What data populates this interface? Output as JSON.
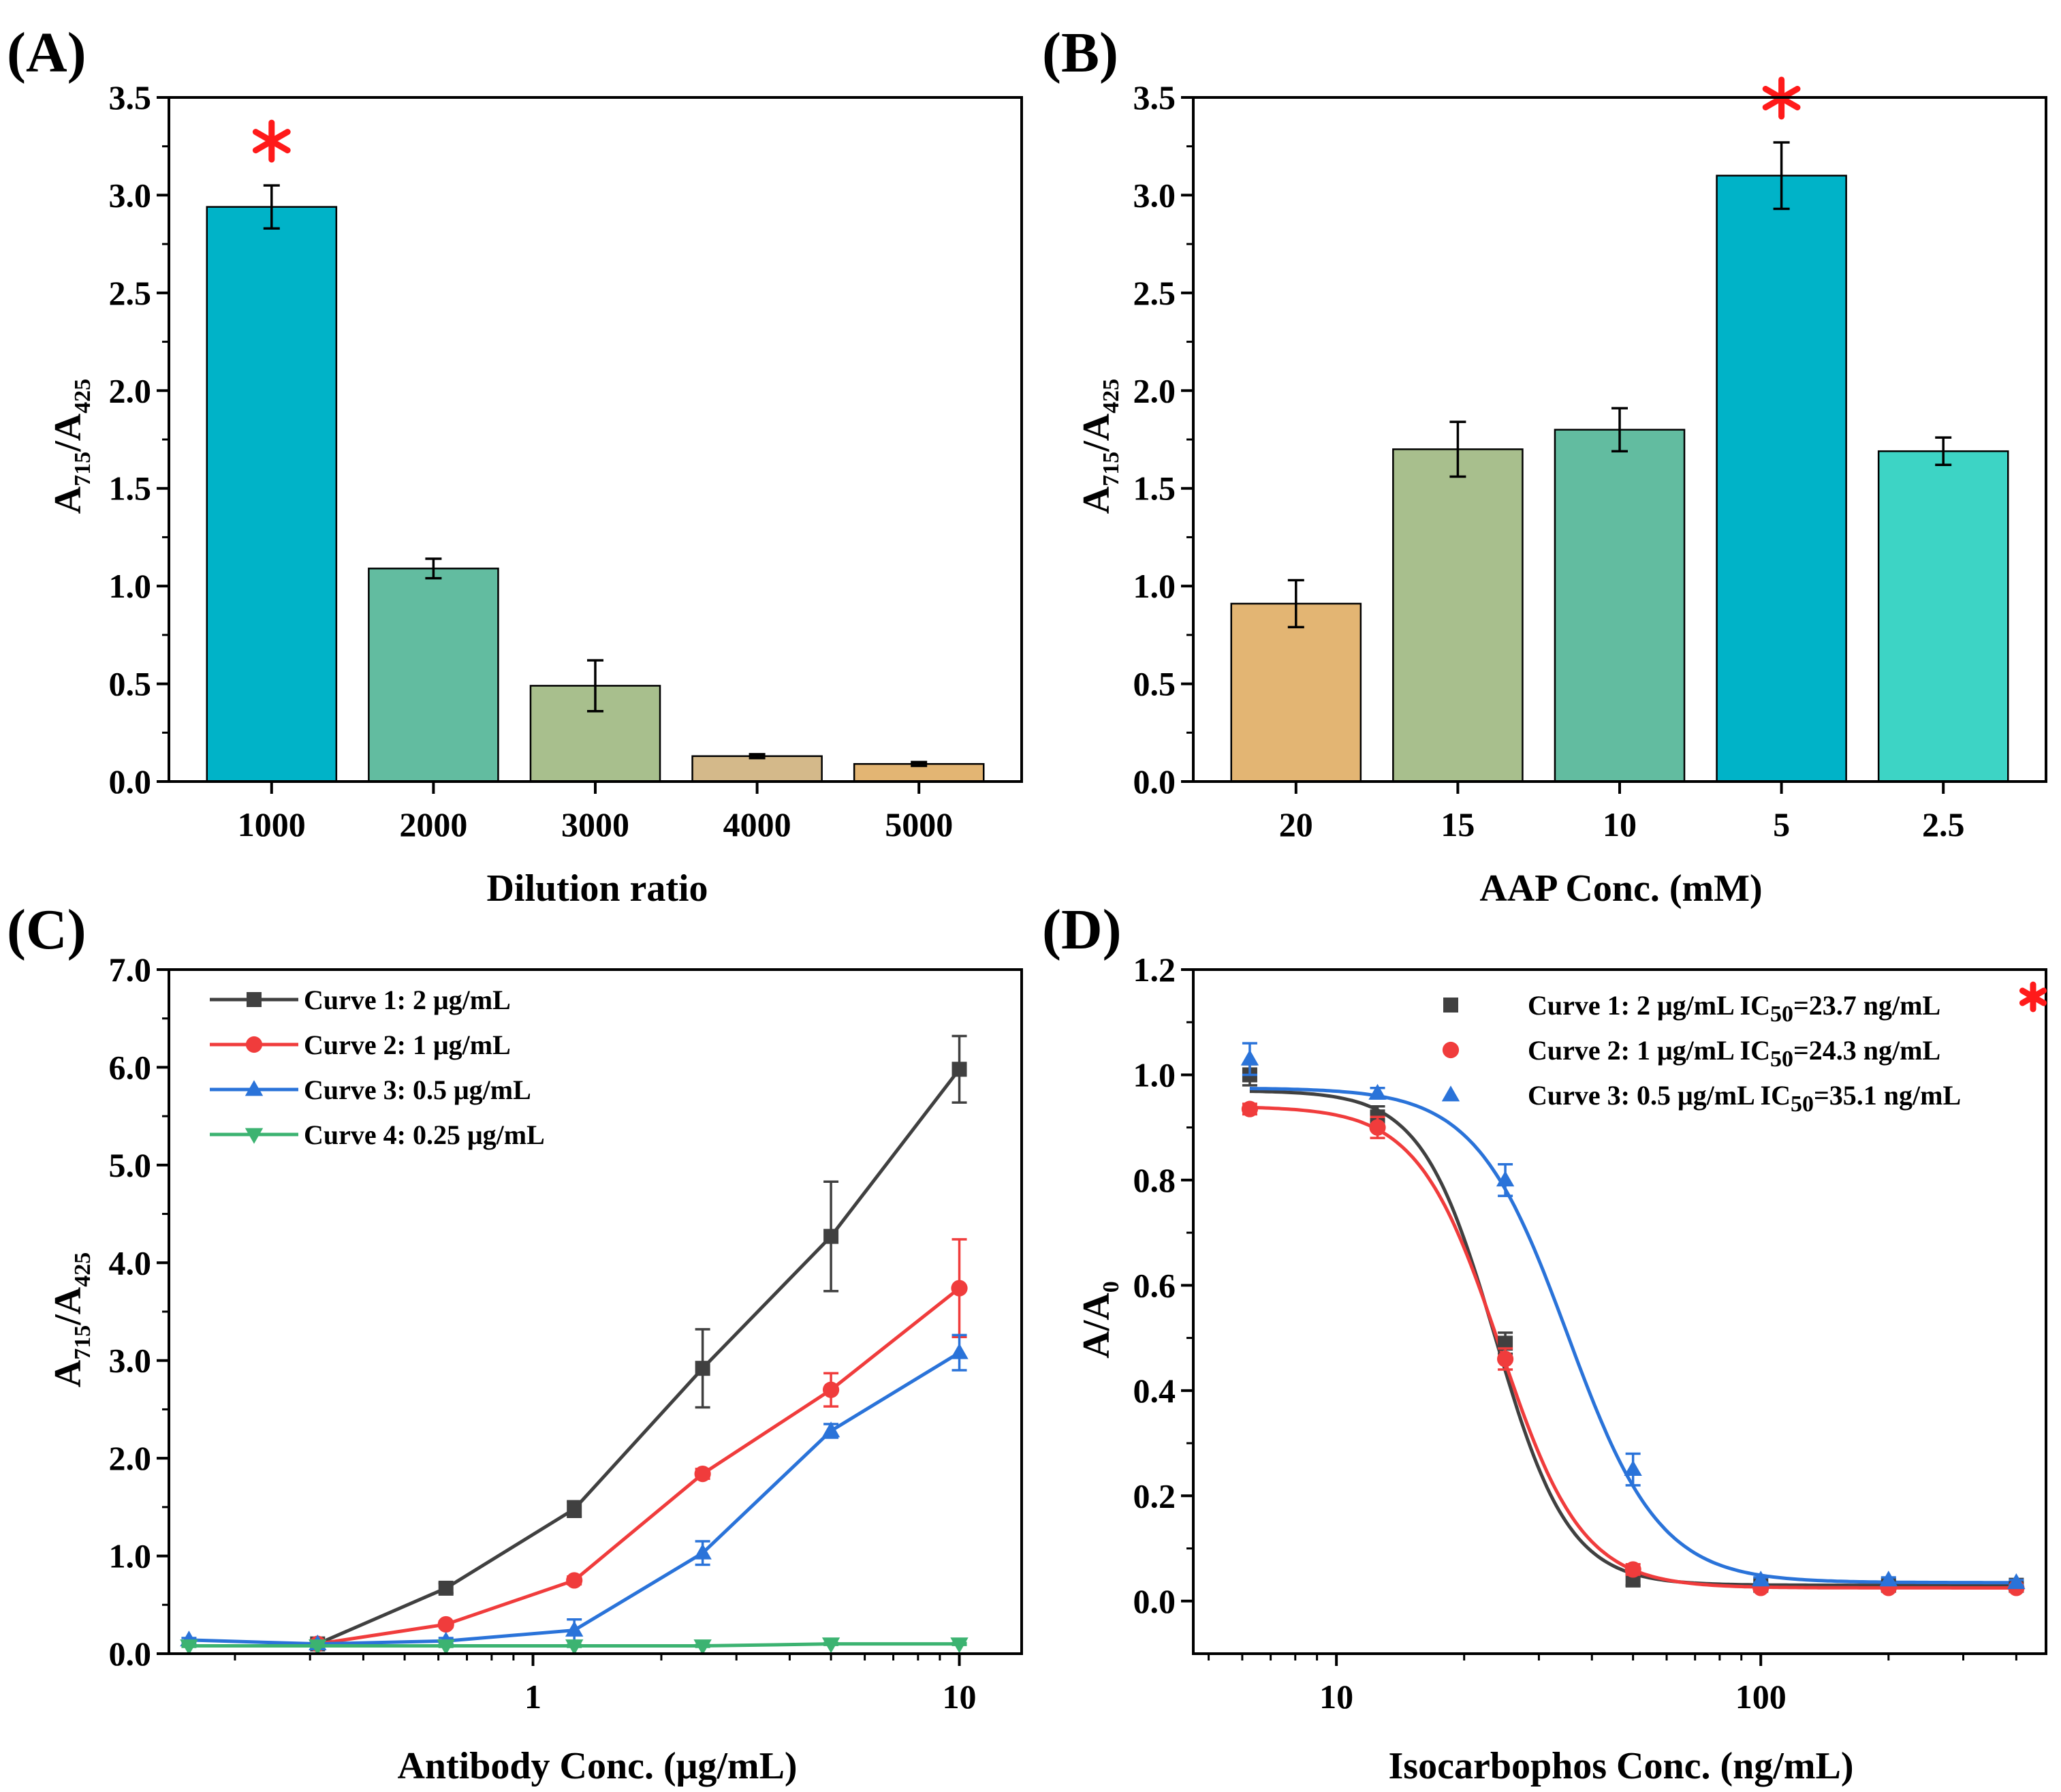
{
  "colors": {
    "bar_teal": "#00b3c8",
    "bar_green": "#62bca0",
    "bar_olive": "#a8bf8d",
    "bar_tan": "#d4b98a",
    "bar_orange": "#e3b573",
    "bar_turquoise": "#3dd4c5",
    "curve1": "#404040",
    "curve2": "#f03c3c",
    "curve3": "#2a73d9",
    "curve4": "#3cb371",
    "star": "#ff1a1a"
  },
  "chart_data": [
    {
      "id": "A",
      "panel_label": "(A)",
      "type": "bar",
      "categories": [
        "1000",
        "2000",
        "3000",
        "4000",
        "5000"
      ],
      "values": [
        2.94,
        1.09,
        0.49,
        0.13,
        0.09
      ],
      "errors": [
        0.11,
        0.05,
        0.13,
        0.01,
        0.01
      ],
      "bar_colors": [
        "bar_teal",
        "bar_green",
        "bar_olive",
        "bar_tan",
        "bar_orange"
      ],
      "highlight_index": 0,
      "highlight_mark": "*",
      "xlabel": "Dilution ratio",
      "ylabel": {
        "main": "A",
        "sub1": "715",
        "mid": "/A",
        "sub2": "425"
      },
      "ylim": [
        0,
        3.5
      ],
      "yticks": [
        "0.0",
        "0.5",
        "1.0",
        "1.5",
        "2.0",
        "2.5",
        "3.0",
        "3.5"
      ]
    },
    {
      "id": "B",
      "panel_label": "(B)",
      "type": "bar",
      "categories": [
        "20",
        "15",
        "10",
        "5",
        "2.5"
      ],
      "values": [
        0.91,
        1.7,
        1.8,
        3.1,
        1.69
      ],
      "errors": [
        0.12,
        0.14,
        0.11,
        0.17,
        0.07
      ],
      "bar_colors": [
        "bar_orange",
        "bar_olive",
        "bar_green",
        "bar_teal",
        "bar_turquoise"
      ],
      "highlight_index": 3,
      "highlight_mark": "*",
      "xlabel": "AAP Conc. (mM)",
      "ylabel": {
        "main": "A",
        "sub1": "715",
        "mid": "/A",
        "sub2": "425"
      },
      "ylim": [
        0,
        3.5
      ],
      "yticks": [
        "0.0",
        "0.5",
        "1.0",
        "1.5",
        "2.0",
        "2.5",
        "3.0",
        "3.5"
      ]
    },
    {
      "id": "C",
      "panel_label": "(C)",
      "type": "line",
      "x_scale": "log",
      "xlim": [
        0.14,
        14
      ],
      "xticks": [
        {
          "value": 1,
          "label": "1"
        },
        {
          "value": 10,
          "label": "10"
        }
      ],
      "x": [
        0.156,
        0.3125,
        0.625,
        1.25,
        2.5,
        5,
        10
      ],
      "series": [
        {
          "name": "Curve 1: 2 μg/mL",
          "color": "curve1",
          "marker": "square",
          "values": [
            null,
            0.1,
            0.67,
            1.48,
            2.92,
            4.27,
            5.98
          ],
          "errors": [
            null,
            0.02,
            0.05,
            0.08,
            0.4,
            0.56,
            0.34
          ]
        },
        {
          "name": "Curve 2: 1 μg/mL",
          "color": "curve2",
          "marker": "circle",
          "values": [
            null,
            0.1,
            0.3,
            0.75,
            1.84,
            2.7,
            3.74
          ],
          "errors": [
            null,
            0.02,
            0.03,
            0.04,
            0.05,
            0.17,
            0.5
          ]
        },
        {
          "name": "Curve 3: 0.5 μg/mL",
          "color": "curve3",
          "marker": "triangle-up",
          "values": [
            0.14,
            0.1,
            0.13,
            0.24,
            1.03,
            2.28,
            3.08
          ],
          "errors": [
            0.02,
            0.02,
            0.03,
            0.11,
            0.12,
            0.07,
            0.18
          ]
        },
        {
          "name": "Curve 4: 0.25 μg/mL",
          "color": "curve4",
          "marker": "triangle-down",
          "values": [
            0.08,
            0.08,
            0.08,
            0.08,
            0.08,
            0.1,
            0.1
          ],
          "errors": [
            0.01,
            0.01,
            0.01,
            0.01,
            0.01,
            0.01,
            0.01
          ]
        }
      ],
      "xlabel": "Antibody Conc. (μg/mL)",
      "ylabel": {
        "main": "A",
        "sub1": "715",
        "mid": "/A",
        "sub2": "425"
      },
      "ylim": [
        0,
        7.0
      ],
      "yticks": [
        "0.0",
        "1.0",
        "2.0",
        "3.0",
        "4.0",
        "5.0",
        "6.0",
        "7.0"
      ],
      "legend_position": "top-left"
    },
    {
      "id": "D",
      "panel_label": "(D)",
      "type": "scatter",
      "x_scale": "log",
      "xlim": [
        4.6,
        470
      ],
      "xticks": [
        {
          "value": 10,
          "label": "10"
        },
        {
          "value": 100,
          "label": "100"
        }
      ],
      "x": [
        6.25,
        12.5,
        25,
        50,
        100,
        200,
        400
      ],
      "series": [
        {
          "name_prefix": "Curve 1: 2 μg/mL IC",
          "name_sub": "50",
          "name_suffix": "=23.7 ng/mL",
          "color": "curve1",
          "marker": "square",
          "highlight_mark": "*",
          "values": [
            1.0,
            0.92,
            0.49,
            0.04,
            0.03,
            0.03,
            0.03
          ],
          "errors": [
            0.02,
            0.02,
            0.02,
            0.01,
            0.005,
            0.005,
            0.005
          ],
          "fit": {
            "top": 0.97,
            "bottom": 0.03,
            "ic50": 23.7,
            "hill": 5.0
          }
        },
        {
          "name_prefix": "Curve 2: 1 μg/mL IC",
          "name_sub": "50",
          "name_suffix": "=24.3 ng/mL",
          "color": "curve2",
          "marker": "circle",
          "values": [
            0.935,
            0.9,
            0.46,
            0.06,
            0.025,
            0.025,
            0.025
          ],
          "errors": [
            0.01,
            0.02,
            0.02,
            0.01,
            0.005,
            0.005,
            0.005
          ],
          "fit": {
            "top": 0.94,
            "bottom": 0.025,
            "ic50": 24.3,
            "hill": 4.5
          }
        },
        {
          "name_prefix": "Curve 3: 0.5 μg/mL IC",
          "name_sub": "50",
          "name_suffix": "=35.1 ng/mL",
          "color": "curve3",
          "marker": "triangle-up",
          "values": [
            1.03,
            0.965,
            0.8,
            0.25,
            0.04,
            0.04,
            0.035
          ],
          "errors": [
            0.03,
            0.01,
            0.03,
            0.03,
            0.005,
            0.005,
            0.005
          ],
          "fit": {
            "top": 0.975,
            "bottom": 0.035,
            "ic50": 35.1,
            "hill": 4.0
          }
        }
      ],
      "xlabel": "Isocarbophos Conc. (ng/mL)",
      "ylabel": {
        "main": "A/A",
        "sub1": "0"
      },
      "ylim": [
        -0.1,
        1.2
      ],
      "yticks": [
        "0.0",
        "0.2",
        "0.4",
        "0.6",
        "0.8",
        "1.0",
        "1.2"
      ],
      "legend_position": "top-right"
    }
  ]
}
